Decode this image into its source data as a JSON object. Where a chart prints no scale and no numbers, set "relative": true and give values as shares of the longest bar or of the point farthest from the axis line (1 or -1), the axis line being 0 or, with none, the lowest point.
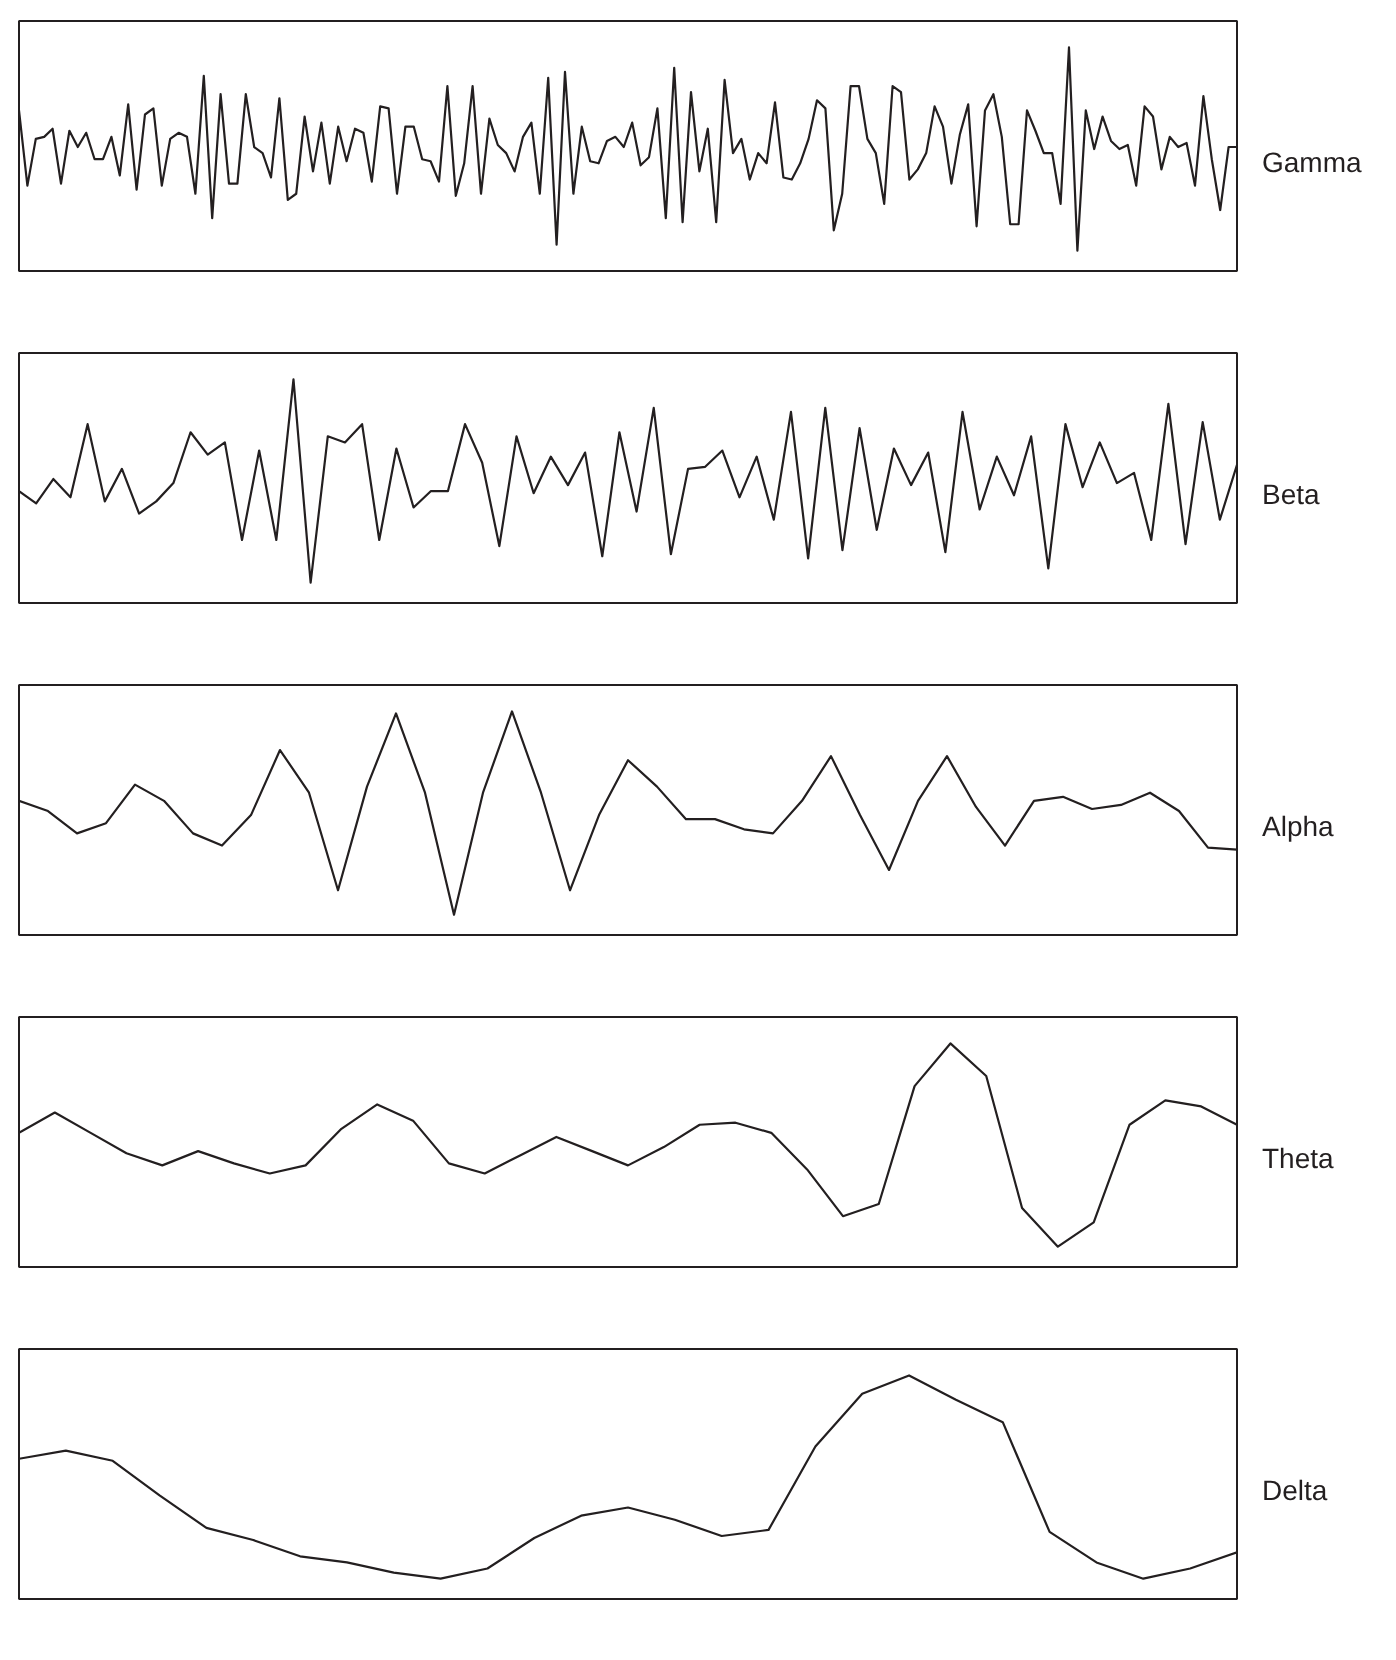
{
  "chart_data": [
    {
      "type": "line",
      "relative": true,
      "categories": [
        null,
        null,
        null,
        null,
        null,
        null,
        null,
        null,
        null,
        null,
        null,
        null,
        null,
        null,
        null,
        null,
        null,
        null,
        null,
        null,
        null,
        null,
        null,
        null,
        null,
        null,
        null,
        null,
        null,
        null,
        null,
        null,
        null,
        null,
        null,
        null,
        null,
        null,
        null,
        null,
        null,
        null,
        null,
        null,
        null,
        null,
        null,
        null,
        null,
        null,
        null,
        null,
        null,
        null,
        null,
        null,
        null,
        null,
        null,
        null,
        null,
        null,
        null,
        null,
        null,
        null,
        null,
        null,
        null,
        null,
        null,
        null,
        null,
        null,
        null,
        null,
        null,
        null,
        null,
        null,
        null,
        null,
        null,
        null,
        null,
        null,
        null,
        null,
        null,
        null,
        null,
        null,
        null,
        null,
        null,
        null,
        null,
        null,
        null,
        null,
        null,
        null,
        null,
        null,
        null,
        null,
        null,
        null,
        null,
        null,
        null,
        null,
        null,
        null,
        null,
        null,
        null,
        null,
        null,
        null,
        null,
        null,
        null,
        null,
        null,
        null,
        null,
        null,
        null,
        null,
        null,
        null,
        null,
        null,
        null,
        null,
        null,
        null,
        null,
        null,
        null,
        null,
        null,
        null,
        null,
        null
      ],
      "series": [
        {
          "name": "Gamma",
          "color": "#231f20",
          "values": [
            0.69,
            0.32,
            0.55,
            0.56,
            0.6,
            0.33,
            0.59,
            0.51,
            0.58,
            0.45,
            0.45,
            0.56,
            0.37,
            0.72,
            0.3,
            0.67,
            0.7,
            0.32,
            0.55,
            0.58,
            0.56,
            0.28,
            0.86,
            0.16,
            0.77,
            0.33,
            0.33,
            0.77,
            0.51,
            0.48,
            0.36,
            0.75,
            0.25,
            0.28,
            0.66,
            0.39,
            0.63,
            0.33,
            0.61,
            0.44,
            0.6,
            0.58,
            0.34,
            0.71,
            0.7,
            0.28,
            0.61,
            0.61,
            0.45,
            0.44,
            0.34,
            0.81,
            0.27,
            0.43,
            0.81,
            0.28,
            0.65,
            0.52,
            0.48,
            0.39,
            0.56,
            0.63,
            0.28,
            0.85,
            0.03,
            0.88,
            0.28,
            0.61,
            0.44,
            0.43,
            0.54,
            0.56,
            0.51,
            0.63,
            0.42,
            0.46,
            0.7,
            0.16,
            0.9,
            0.14,
            0.78,
            0.39,
            0.6,
            0.14,
            0.84,
            0.48,
            0.55,
            0.35,
            0.48,
            0.43,
            0.73,
            0.36,
            0.35,
            0.43,
            0.55,
            0.74,
            0.7,
            0.1,
            0.28,
            0.81,
            0.81,
            0.55,
            0.48,
            0.23,
            0.81,
            0.78,
            0.35,
            0.4,
            0.48,
            0.71,
            0.61,
            0.33,
            0.57,
            0.72,
            0.12,
            0.69,
            0.77,
            0.56,
            0.13,
            0.13,
            0.69,
            0.59,
            0.48,
            0.48,
            0.23,
            1.0,
            0,
            0.69,
            0.5,
            0.66,
            0.54,
            0.5,
            0.52,
            0.32,
            0.71,
            0.66,
            0.4,
            0.56,
            0.51,
            0.53,
            0.32,
            0.76,
            0.45,
            0.2,
            0.51,
            0.51
          ]
        }
      ]
    },
    {
      "type": "line",
      "relative": true,
      "categories": [
        null,
        null,
        null,
        null,
        null,
        null,
        null,
        null,
        null,
        null,
        null,
        null,
        null,
        null,
        null,
        null,
        null,
        null,
        null,
        null,
        null,
        null,
        null,
        null,
        null,
        null,
        null,
        null,
        null,
        null,
        null,
        null,
        null,
        null,
        null,
        null,
        null,
        null,
        null,
        null,
        null,
        null,
        null,
        null,
        null,
        null,
        null,
        null,
        null,
        null,
        null,
        null,
        null,
        null,
        null,
        null,
        null,
        null,
        null,
        null,
        null,
        null,
        null,
        null,
        null,
        null,
        null,
        null,
        null,
        null,
        null,
        null
      ],
      "series": [
        {
          "name": "Beta",
          "color": "#231f20",
          "values": [
            0.45,
            0.39,
            0.51,
            0.42,
            0.78,
            0.4,
            0.56,
            0.34,
            0.4,
            0.49,
            0.74,
            0.63,
            0.69,
            0.21,
            0.65,
            0.21,
            1.0,
            0,
            0.72,
            0.69,
            0.78,
            0.21,
            0.66,
            0.37,
            0.45,
            0.45,
            0.78,
            0.59,
            0.18,
            0.72,
            0.44,
            0.62,
            0.48,
            0.64,
            0.13,
            0.74,
            0.35,
            0.86,
            0.14,
            0.56,
            0.57,
            0.65,
            0.42,
            0.62,
            0.31,
            0.84,
            0.12,
            0.86,
            0.16,
            0.76,
            0.26,
            0.66,
            0.48,
            0.64,
            0.15,
            0.84,
            0.36,
            0.62,
            0.43,
            0.72,
            0.07,
            0.78,
            0.47,
            0.69,
            0.49,
            0.54,
            0.21,
            0.88,
            0.19,
            0.79,
            0.31,
            0.58
          ]
        }
      ]
    },
    {
      "type": "line",
      "relative": true,
      "categories": [
        null,
        null,
        null,
        null,
        null,
        null,
        null,
        null,
        null,
        null,
        null,
        null,
        null,
        null,
        null,
        null,
        null,
        null,
        null,
        null,
        null,
        null,
        null,
        null,
        null,
        null,
        null,
        null,
        null,
        null,
        null,
        null,
        null,
        null,
        null,
        null,
        null,
        null,
        null,
        null,
        null,
        null,
        null
      ],
      "series": [
        {
          "name": "Alpha",
          "color": "#231f20",
          "values": [
            0.56,
            0.51,
            0.4,
            0.45,
            0.64,
            0.56,
            0.4,
            0.34,
            0.49,
            0.81,
            0.6,
            0.12,
            0.63,
            0.99,
            0.6,
            0,
            0.6,
            1.0,
            0.6,
            0.12,
            0.49,
            0.76,
            0.63,
            0.47,
            0.47,
            0.42,
            0.4,
            0.56,
            0.78,
            0.49,
            0.22,
            0.56,
            0.78,
            0.53,
            0.34,
            0.56,
            0.58,
            0.52,
            0.54,
            0.6,
            0.51,
            0.33,
            0.32
          ]
        }
      ]
    },
    {
      "type": "line",
      "relative": true,
      "categories": [
        null,
        null,
        null,
        null,
        null,
        null,
        null,
        null,
        null,
        null,
        null,
        null,
        null,
        null,
        null,
        null,
        null,
        null,
        null,
        null,
        null,
        null,
        null,
        null,
        null,
        null,
        null,
        null,
        null,
        null,
        null,
        null,
        null,
        null,
        null
      ],
      "series": [
        {
          "name": "Theta",
          "color": "#231f20",
          "values": [
            0.56,
            0.66,
            0.56,
            0.46,
            0.4,
            0.47,
            0.41,
            0.36,
            0.4,
            0.58,
            0.7,
            0.62,
            0.41,
            0.36,
            0.45,
            0.54,
            0.47,
            0.4,
            0.49,
            0.6,
            0.61,
            0.56,
            0.38,
            0.15,
            0.21,
            0.79,
            1.0,
            0.84,
            0.19,
            0,
            0.12,
            0.6,
            0.72,
            0.69,
            0.6
          ]
        }
      ]
    },
    {
      "type": "line",
      "relative": true,
      "categories": [
        null,
        null,
        null,
        null,
        null,
        null,
        null,
        null,
        null,
        null,
        null,
        null,
        null,
        null,
        null,
        null,
        null,
        null,
        null,
        null,
        null,
        null,
        null,
        null,
        null,
        null,
        null
      ],
      "series": [
        {
          "name": "Delta",
          "color": "#231f20",
          "values": [
            0.59,
            0.63,
            0.58,
            0.41,
            0.25,
            0.19,
            0.11,
            0.08,
            0.03,
            0,
            0.05,
            0.2,
            0.31,
            0.35,
            0.29,
            0.21,
            0.24,
            0.65,
            0.91,
            1.0,
            0.88,
            0.77,
            0.23,
            0.08,
            0,
            0.05,
            0.13
          ]
        }
      ]
    }
  ]
}
